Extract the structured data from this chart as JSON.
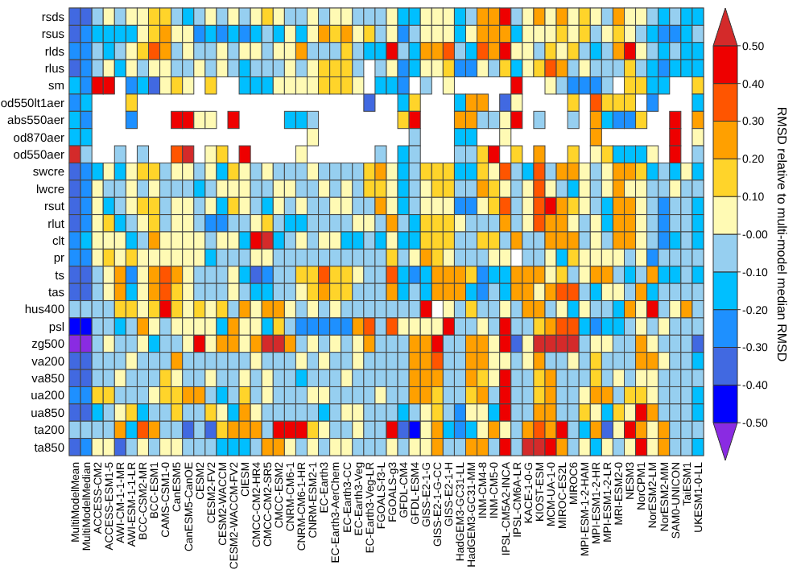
{
  "chart_data": {
    "type": "heatmap",
    "clabel": "RMSD relative to multi-model median RMSD",
    "clim": [
      -0.6,
      0.6
    ],
    "cticks": [
      {
        "value": 0.5,
        "label": "0.50"
      },
      {
        "value": 0.4,
        "label": "0.40"
      },
      {
        "value": 0.3,
        "label": "0.30"
      },
      {
        "value": 0.2,
        "label": "0.20"
      },
      {
        "value": 0.1,
        "label": "0.10"
      },
      {
        "value": 0,
        "label": "-0.00"
      },
      {
        "value": -0.1,
        "label": "-0.10"
      },
      {
        "value": -0.2,
        "label": "-0.20"
      },
      {
        "value": -0.3,
        "label": "-0.30"
      },
      {
        "value": -0.4,
        "label": "-0.40"
      },
      {
        "value": -0.5,
        "label": "-0.50"
      }
    ],
    "categories": [
      "MultiModelMean",
      "MultiModelMedian",
      "ACCESS-CM2",
      "ACCESS-ESM1-5",
      "AWI-CM-1-1-MR",
      "AWI-ESM-1-1-LR",
      "BCC-CSM2-MR",
      "BCC-ESM1",
      "CAMS-CSM1-0",
      "CanESM5",
      "CanESM5-CanOE",
      "CESM2",
      "CESM2-FV2",
      "CESM2-WACCM",
      "CESM2-WACCM-FV2",
      "CIESM",
      "CMCC-CM2-HR4",
      "CMCC-CM2-SR5",
      "CMCC-ESM2",
      "CNRM-CM6-1",
      "CNRM-CM6-1-HR",
      "CNRM-ESM2-1",
      "EC-Earth3",
      "EC-Earth3-AerChem",
      "EC-Earth3-CC",
      "EC-Earth3-Veg",
      "EC-Earth3-Veg-LR",
      "FGOALS-f3-L",
      "FGOALS-g3",
      "GFDL-CM4",
      "GFDL-ESM4",
      "GISS-E2-1-G",
      "GISS-E2-1-G-CC",
      "GISS-E2-1-H",
      "HadGEM3-GC31-LL",
      "HadGEM3-GC31-MM",
      "INM-CM4-8",
      "INM-CM5-0",
      "IPSL-CM5A2-INCA",
      "IPSL-CM6A-LR",
      "KACE-1-0-G",
      "KIOST-ESM",
      "MCM-UA-1-0",
      "MIROC-ES2L",
      "MIROC6",
      "MPI-ESM-1-2-HAM",
      "MPI-ESM1-2-HR",
      "MPI-ESM1-2-LR",
      "MRI-ESM2-0",
      "NESM3",
      "NorCPM1",
      "NorESM2-LM",
      "NorESM2-MM",
      "SAM0-UNICON",
      "TaiESM1",
      "UKESM1-0-LL"
    ],
    "y_categories": [
      "rsds",
      "rsus",
      "rlds",
      "rlus",
      "sm",
      "od550lt1aer",
      "abs550aer",
      "od870aer",
      "od550aer",
      "swcre",
      "lwcre",
      "rsut",
      "rlut",
      "clt",
      "pr",
      "ts",
      "tas",
      "hus400",
      "psl",
      "zg500",
      "va200",
      "va850",
      "ua200",
      "ua850",
      "ta200",
      "ta850"
    ],
    "cells": [
      [
        -0.35,
        -0.35,
        -0.05,
        0.05,
        -0.05,
        0.05,
        0.05,
        0.15,
        0.15,
        -0.05,
        -0.15,
        -0.05,
        0.05,
        -0.05,
        0.05,
        -0.05,
        0.05,
        0.15,
        0.05,
        -0.05,
        -0.05,
        0.05,
        -0.05,
        0.05,
        0.05,
        -0.05,
        -0.05,
        -0.05,
        0.05,
        -0.15,
        -0.15,
        0.05,
        0.05,
        0.05,
        -0.15,
        -0.05,
        0.25,
        0.25,
        0.45,
        -0.05,
        0.05,
        0.25,
        0.05,
        0.25,
        0.05,
        0.15,
        0.05,
        -0.05,
        0.25,
        0.05,
        0.05,
        -0.05,
        -0.15,
        -0.05,
        -0.15,
        -0.15
      ],
      [
        -0.35,
        -0.25,
        -0.15,
        -0.15,
        -0.15,
        -0.15,
        0.05,
        0.15,
        0.25,
        0.05,
        0.05,
        -0.25,
        -0.15,
        -0.25,
        -0.15,
        -0.25,
        -0.15,
        -0.05,
        -0.15,
        0.05,
        -0.15,
        0.05,
        0.25,
        0.15,
        0.25,
        0.05,
        0.15,
        -0.05,
        0.05,
        -0.25,
        -0.05,
        0.05,
        0.05,
        0.05,
        -0.15,
        0.05,
        0.25,
        0.25,
        0.25,
        -0.15,
        0.05,
        0.05,
        0.05,
        0.15,
        0.05,
        0.15,
        -0.05,
        0.05,
        0.15,
        0.05,
        -0.05,
        -0.15,
        -0.25,
        -0.25,
        -0.15,
        -0.05
      ],
      [
        -0.25,
        -0.25,
        -0.05,
        -0.15,
        -0.05,
        0.05,
        0.15,
        0.35,
        0.25,
        -0.05,
        0.05,
        -0.05,
        -0.05,
        0.05,
        -0.05,
        0.05,
        0.05,
        -0.05,
        0.05,
        0.05,
        0.25,
        -0.05,
        -0.05,
        -0.05,
        0.15,
        -0.05,
        -0.15,
        -0.15,
        0.45,
        -0.05,
        -0.15,
        0.25,
        0.25,
        0.35,
        -0.05,
        -0.15,
        0.35,
        0.25,
        0.45,
        0.05,
        0.05,
        -0.05,
        0.15,
        0.05,
        0.15,
        -0.05,
        -0.15,
        -0.05,
        0.25,
        0.45,
        0.05,
        -0.05,
        -0.15,
        -0.05,
        -0.15,
        -0.15
      ],
      [
        -0.35,
        -0.25,
        -0.05,
        0.05,
        -0.15,
        0.05,
        -0.05,
        0.05,
        0.05,
        -0.05,
        -0.05,
        0.05,
        -0.05,
        0.05,
        -0.05,
        -0.15,
        -0.05,
        -0.05,
        -0.05,
        0.05,
        -0.05,
        0.05,
        0.15,
        0.15,
        0.15,
        -0.05,
        null,
        -0.05,
        0.05,
        -0.25,
        -0.15,
        0.05,
        0.05,
        0.15,
        -0.25,
        -0.25,
        0.05,
        -0.05,
        0.15,
        -0.15,
        0.05,
        0.15,
        0.35,
        0.25,
        -0.05,
        0.05,
        -0.05,
        -0.05,
        -0.05,
        0.15,
        -0.05,
        -0.15,
        -0.25,
        -0.15,
        -0.15,
        -0.15
      ],
      [
        -0.15,
        -0.25,
        0.45,
        0.45,
        null,
        -0.25,
        -0.15,
        -0.35,
        0.05,
        0.15,
        0.05,
        null,
        0.15,
        null,
        null,
        -0.15,
        -0.15,
        -0.15,
        0.05,
        0.05,
        0.05,
        0.05,
        0.15,
        0.15,
        0.15,
        0.05,
        null,
        -0.15,
        -0.15,
        -0.25,
        null,
        -0.05,
        null,
        0.05,
        null,
        null,
        null,
        null,
        null,
        0.45,
        null,
        null,
        0.05,
        -0.05,
        -0.25,
        -0.25,
        -0.25,
        -0.05,
        null,
        0.15,
        0.15,
        -0.15,
        -0.15,
        null,
        null,
        0.15
      ],
      [
        -0.25,
        -0.15,
        null,
        null,
        null,
        0.15,
        null,
        null,
        null,
        null,
        null,
        null,
        null,
        null,
        null,
        null,
        null,
        null,
        null,
        null,
        null,
        null,
        null,
        null,
        null,
        null,
        -0.35,
        null,
        null,
        -0.15,
        0.15,
        null,
        null,
        null,
        -0.15,
        0.25,
        0.25,
        null,
        -0.35,
        0.05,
        null,
        null,
        null,
        null,
        0.15,
        null,
        0.35,
        0.15,
        0.15,
        0.15,
        null,
        -0.25,
        null,
        null,
        null,
        -0.15
      ],
      [
        -0.15,
        -0.25,
        null,
        null,
        null,
        -0.25,
        null,
        null,
        null,
        0.45,
        0.45,
        0.05,
        0.05,
        null,
        0.45,
        null,
        null,
        null,
        null,
        -0.15,
        -0.15,
        -0.05,
        null,
        null,
        null,
        null,
        null,
        null,
        null,
        0.15,
        0.45,
        null,
        null,
        null,
        0.25,
        0.25,
        -0.05,
        -0.05,
        0.05,
        0.45,
        null,
        -0.05,
        null,
        null,
        -0.05,
        null,
        0.25,
        -0.15,
        -0.25,
        -0.25,
        0.15,
        null,
        null,
        0.45,
        null,
        0.25
      ],
      [
        -0.15,
        -0.15,
        null,
        null,
        null,
        null,
        null,
        null,
        null,
        null,
        null,
        null,
        null,
        null,
        null,
        null,
        null,
        null,
        null,
        null,
        null,
        0.05,
        null,
        null,
        null,
        null,
        null,
        null,
        null,
        null,
        -0.05,
        null,
        null,
        null,
        -0.15,
        -0.15,
        null,
        null,
        0.05,
        null,
        null,
        null,
        null,
        null,
        null,
        null,
        0.25,
        null,
        null,
        null,
        null,
        null,
        null,
        0.45,
        null,
        0.05
      ],
      [
        0.55,
        -0.05,
        null,
        null,
        -0.05,
        null,
        -0.05,
        null,
        null,
        0.35,
        0.55,
        null,
        0.05,
        0.15,
        null,
        0.45,
        null,
        null,
        null,
        null,
        0.05,
        null,
        null,
        null,
        null,
        null,
        null,
        -0.05,
        null,
        -0.15,
        -0.05,
        null,
        null,
        null,
        -0.05,
        -0.05,
        0.15,
        0.45,
        null,
        0.15,
        null,
        0.25,
        null,
        null,
        0.15,
        null,
        0.05,
        0.15,
        -0.15,
        -0.15,
        -0.15,
        0.05,
        null,
        0.45,
        null,
        -0.05
      ],
      [
        -0.35,
        -0.25,
        -0.15,
        0.05,
        -0.15,
        0.05,
        0.15,
        0.15,
        -0.05,
        0.05,
        0.05,
        -0.05,
        0.05,
        -0.15,
        0.15,
        0.05,
        -0.05,
        0.05,
        -0.05,
        -0.05,
        -0.05,
        0.05,
        -0.05,
        -0.05,
        -0.05,
        -0.05,
        0.15,
        0.25,
        0.05,
        -0.15,
        -0.05,
        0.15,
        0.15,
        0.15,
        -0.15,
        -0.15,
        0.15,
        0.05,
        0.35,
        -0.05,
        -0.15,
        0.35,
        -0.05,
        0.25,
        0.25,
        0.05,
        -0.05,
        0.05,
        0.25,
        0.25,
        0.15,
        -0.15,
        -0.05,
        -0.15,
        0.05,
        -0.15
      ],
      [
        -0.35,
        -0.25,
        0.05,
        -0.05,
        -0.05,
        0.05,
        -0.05,
        0.05,
        -0.05,
        -0.05,
        -0.05,
        -0.15,
        -0.05,
        0.05,
        0.05,
        0.05,
        -0.05,
        -0.05,
        0.05,
        0.05,
        -0.05,
        -0.05,
        0.05,
        -0.05,
        0.05,
        -0.05,
        0.15,
        0.15,
        0.05,
        -0.15,
        -0.05,
        0.05,
        0.15,
        0.15,
        -0.05,
        -0.05,
        0.25,
        0.15,
        0.05,
        -0.05,
        0.05,
        0.35,
        0.05,
        -0.05,
        -0.15,
        0.05,
        -0.05,
        0.05,
        0.25,
        0.05,
        0.05,
        -0.05,
        -0.05,
        0.05,
        -0.05,
        -0.05
      ],
      [
        -0.35,
        -0.25,
        0.05,
        -0.15,
        -0.05,
        0.05,
        0.15,
        0.15,
        -0.05,
        0.05,
        0.05,
        -0.05,
        0.05,
        -0.15,
        0.15,
        0.05,
        -0.05,
        -0.15,
        0.05,
        -0.05,
        0.05,
        -0.05,
        -0.05,
        0.05,
        0.05,
        -0.05,
        -0.05,
        0.25,
        0.05,
        -0.15,
        -0.05,
        0.05,
        0.05,
        0.05,
        -0.25,
        -0.25,
        0.05,
        0.15,
        0.35,
        -0.05,
        0.05,
        0.35,
        0.45,
        0.25,
        0.15,
        0.05,
        -0.05,
        -0.15,
        0.25,
        0.25,
        0.05,
        -0.05,
        -0.25,
        -0.05,
        -0.05,
        -0.15
      ],
      [
        -0.35,
        -0.25,
        0.05,
        0.15,
        -0.15,
        -0.05,
        0.05,
        0.15,
        -0.05,
        0.05,
        0.05,
        -0.05,
        -0.25,
        -0.25,
        -0.05,
        -0.05,
        0.05,
        0.15,
        -0.05,
        -0.15,
        -0.15,
        -0.05,
        -0.05,
        -0.05,
        -0.05,
        0.05,
        0.05,
        -0.05,
        0.25,
        -0.05,
        -0.15,
        0.15,
        0.15,
        0.15,
        0.05,
        -0.05,
        -0.05,
        -0.05,
        0.25,
        -0.05,
        0.05,
        0.35,
        0.25,
        0.25,
        0.05,
        -0.05,
        0.05,
        -0.15,
        0.25,
        0.25,
        0.05,
        -0.05,
        -0.25,
        -0.05,
        -0.05,
        -0.15
      ],
      [
        -0.25,
        -0.15,
        0.05,
        0.05,
        0.05,
        -0.15,
        -0.05,
        0.25,
        0.05,
        0.05,
        0.05,
        0.05,
        -0.05,
        0.05,
        0.05,
        -0.15,
        0.45,
        0.55,
        -0.15,
        -0.05,
        0.05,
        -0.05,
        0.05,
        0.05,
        -0.15,
        -0.15,
        -0.05,
        -0.15,
        0.05,
        -0.15,
        -0.15,
        0.15,
        0.15,
        0.15,
        -0.05,
        -0.05,
        0.15,
        0.15,
        -0.05,
        0.25,
        -0.05,
        -0.05,
        0.25,
        0.25,
        0.25,
        -0.05,
        0.05,
        -0.05,
        0.25,
        0.25,
        0.05,
        -0.05,
        -0.25,
        -0.15,
        -0.05,
        -0.15
      ],
      [
        -0.25,
        -0.25,
        0.05,
        0.15,
        0.05,
        0.15,
        0.05,
        0.05,
        0.05,
        0.05,
        0.05,
        0.05,
        -0.15,
        -0.05,
        -0.05,
        -0.05,
        0.05,
        0.05,
        -0.05,
        -0.05,
        -0.05,
        -0.05,
        -0.05,
        -0.05,
        -0.05,
        -0.05,
        -0.05,
        -0.05,
        0.15,
        -0.05,
        0.05,
        0.25,
        0.15,
        0.05,
        -0.05,
        -0.05,
        -0.05,
        0.05,
        0.05,
        null,
        -0.05,
        -0.05,
        0.05,
        -0.15,
        0.15,
        0.05,
        0.05,
        0.05,
        0.05,
        -0.05,
        0.05,
        -0.25,
        -0.05,
        -0.05,
        -0.05,
        -0.05
      ],
      [
        -0.35,
        -0.35,
        -0.05,
        0.05,
        0.25,
        -0.25,
        0.05,
        0.25,
        0.35,
        0.25,
        0.05,
        -0.05,
        -0.05,
        -0.05,
        0.05,
        -0.15,
        -0.35,
        -0.25,
        -0.05,
        -0.05,
        0.15,
        0.15,
        0.35,
        0.15,
        0.15,
        0.05,
        -0.05,
        -0.05,
        0.35,
        -0.15,
        -0.25,
        -0.15,
        0.25,
        0.25,
        0.25,
        0.15,
        -0.25,
        -0.15,
        -0.15,
        0.25,
        0.25,
        0.25,
        0.05,
        0.15,
        -0.05,
        0.05,
        0.25,
        0.25,
        -0.05,
        -0.15,
        -0.05,
        0.25,
        -0.15,
        -0.15,
        -0.05,
        -0.15
      ],
      [
        -0.35,
        -0.35,
        -0.05,
        0.05,
        0.25,
        -0.15,
        0.05,
        0.25,
        0.35,
        0.15,
        0.05,
        -0.05,
        -0.05,
        -0.05,
        0.05,
        -0.05,
        -0.15,
        -0.15,
        -0.05,
        -0.05,
        0.05,
        0.15,
        0.25,
        0.15,
        0.15,
        -0.05,
        -0.05,
        -0.05,
        0.25,
        -0.15,
        -0.05,
        -0.15,
        0.25,
        0.25,
        0.25,
        -0.15,
        -0.25,
        -0.05,
        -0.15,
        0.25,
        0.25,
        0.05,
        0.25,
        0.35,
        0.35,
        -0.05,
        -0.15,
        0.05,
        0.05,
        -0.05,
        0.25,
        -0.15,
        -0.05,
        -0.05,
        -0.05,
        -0.05
      ],
      [
        -0.05,
        -0.05,
        -0.05,
        -0.05,
        0.15,
        0.15,
        0.05,
        0.15,
        0.45,
        0.15,
        0.05,
        0.15,
        0.05,
        0.15,
        -0.05,
        0.25,
        0.05,
        0.25,
        0.25,
        0.05,
        -0.05,
        0.05,
        -0.05,
        0.05,
        -0.05,
        -0.05,
        -0.05,
        -0.05,
        -0.05,
        -0.05,
        -0.05,
        0.45,
        null,
        0.05,
        -0.05,
        0.15,
        -0.05,
        -0.05,
        0.05,
        -0.05,
        0.25,
        0.25,
        -0.05,
        0.05,
        -0.15,
        0.05,
        -0.05,
        -0.05,
        -0.15,
        0.25,
        0.05,
        0.45,
        -0.05,
        0.05,
        0.25,
        -0.05
      ],
      [
        -0.45,
        -0.45,
        -0.05,
        -0.05,
        -0.15,
        -0.05,
        0.25,
        0.05,
        -0.05,
        0.05,
        0.05,
        0.05,
        0.05,
        -0.15,
        0.25,
        0.05,
        0.05,
        -0.15,
        0.15,
        -0.05,
        -0.25,
        -0.25,
        -0.25,
        -0.25,
        -0.25,
        0.25,
        0.35,
        -0.05,
        0.35,
        0.05,
        0.05,
        0.05,
        0.05,
        0.45,
        -0.05,
        -0.05,
        0.05,
        -0.05,
        0.45,
        -0.05,
        -0.05,
        0.15,
        0.25,
        0.35,
        0.35,
        -0.15,
        -0.25,
        -0.15,
        -0.15,
        -0.05,
        0.05,
        -0.05,
        0.05,
        -0.05,
        -0.05,
        -0.05
      ],
      [
        -0.55,
        -0.55,
        -0.05,
        0.05,
        -0.05,
        -0.05,
        0.05,
        -0.15,
        -0.05,
        -0.05,
        0.05,
        0.45,
        0.05,
        0.25,
        0.25,
        0.05,
        0.25,
        0.55,
        0.55,
        0.25,
        -0.05,
        0.05,
        -0.05,
        0.05,
        -0.05,
        0.05,
        0.25,
        -0.05,
        -0.05,
        -0.05,
        0.25,
        0.25,
        0.45,
        -0.05,
        -0.05,
        0.25,
        0.25,
        0.05,
        0.45,
        -0.35,
        0.05,
        0.55,
        0.55,
        0.55,
        0.55,
        -0.05,
        0.05,
        0.05,
        -0.05,
        -0.05,
        0.25,
        0.05,
        -0.05,
        -0.05,
        -0.05,
        -0.35
      ],
      [
        -0.35,
        -0.35,
        -0.05,
        -0.05,
        -0.05,
        0.05,
        -0.05,
        -0.05,
        -0.05,
        0.25,
        -0.05,
        -0.05,
        -0.05,
        -0.05,
        -0.05,
        -0.05,
        0.05,
        -0.05,
        -0.05,
        -0.05,
        0.05,
        -0.05,
        0.05,
        -0.05,
        -0.05,
        0.05,
        -0.05,
        -0.05,
        -0.05,
        -0.05,
        0.25,
        0.25,
        0.35,
        -0.05,
        -0.05,
        0.25,
        0.25,
        0.05,
        0.05,
        -0.05,
        0.05,
        0.25,
        -0.05,
        -0.05,
        0.05,
        -0.05,
        0.15,
        -0.05,
        -0.05,
        -0.05,
        0.25,
        0.25,
        0.05,
        -0.05,
        -0.05,
        -0.15
      ],
      [
        -0.35,
        -0.35,
        -0.05,
        -0.05,
        0.05,
        -0.05,
        -0.05,
        -0.05,
        0.15,
        0.05,
        -0.05,
        -0.05,
        0.05,
        -0.05,
        -0.05,
        0.05,
        -0.05,
        0.05,
        -0.05,
        -0.05,
        -0.15,
        -0.05,
        -0.05,
        -0.05,
        0.05,
        -0.05,
        -0.05,
        -0.05,
        -0.05,
        -0.05,
        0.25,
        0.25,
        0.25,
        -0.05,
        -0.05,
        0.25,
        0.15,
        0.05,
        0.45,
        -0.05,
        -0.05,
        0.15,
        0.25,
        -0.05,
        -0.05,
        -0.05,
        0.15,
        -0.05,
        0.05,
        -0.05,
        0.05,
        0.05,
        -0.05,
        -0.05,
        -0.05,
        -0.05
      ],
      [
        -0.25,
        -0.25,
        0.15,
        0.15,
        -0.05,
        -0.05,
        -0.05,
        0.05,
        0.15,
        0.15,
        0.25,
        0.25,
        -0.05,
        -0.15,
        -0.05,
        0.15,
        -0.05,
        0.05,
        -0.05,
        -0.05,
        -0.05,
        0.05,
        0.05,
        -0.05,
        -0.05,
        -0.05,
        -0.05,
        0.05,
        -0.05,
        -0.05,
        0.25,
        0.25,
        0.15,
        -0.05,
        -0.05,
        0.15,
        0.25,
        -0.05,
        0.45,
        -0.05,
        -0.05,
        0.15,
        0.25,
        -0.05,
        -0.05,
        0.05,
        0.25,
        0.25,
        -0.05,
        0.15,
        0.15,
        0.05,
        -0.05,
        -0.05,
        -0.05,
        -0.15
      ],
      [
        -0.35,
        -0.35,
        -0.15,
        -0.05,
        0.05,
        0.15,
        -0.15,
        -0.05,
        -0.05,
        0.15,
        -0.05,
        -0.05,
        0.15,
        0.05,
        -0.15,
        0.25,
        0.05,
        -0.05,
        -0.05,
        -0.05,
        -0.05,
        -0.05,
        -0.15,
        -0.05,
        0.05,
        0.05,
        -0.05,
        -0.05,
        -0.05,
        -0.15,
        -0.05,
        0.05,
        0.15,
        -0.05,
        -0.25,
        0.05,
        0.05,
        -0.15,
        0.45,
        -0.05,
        -0.05,
        0.25,
        0.25,
        -0.05,
        -0.05,
        0.15,
        0.05,
        -0.15,
        0.15,
        0.05,
        0.45,
        0.25,
        -0.05,
        -0.05,
        -0.05,
        -0.15
      ],
      [
        -0.05,
        -0.05,
        -0.05,
        -0.05,
        0.25,
        -0.15,
        0.35,
        0.25,
        -0.05,
        -0.05,
        -0.35,
        -0.05,
        -0.35,
        0.15,
        0.25,
        0.25,
        0.25,
        -0.05,
        0.45,
        0.45,
        0.45,
        0.15,
        0.05,
        -0.05,
        -0.05,
        0.05,
        -0.05,
        -0.05,
        0.45,
        -0.35,
        -0.45,
        0.05,
        0.25,
        -0.15,
        -0.25,
        -0.15,
        0.05,
        0.25,
        0.05,
        -0.05,
        0.25,
        0.35,
        0.25,
        0.45,
        -0.05,
        -0.15,
        0.25,
        -0.35,
        0.05,
        0.45,
        0.25,
        0.05,
        0.25,
        -0.05,
        -0.05,
        -0.05
      ],
      [
        -0.35,
        -0.25,
        0.05,
        0.05,
        -0.35,
        -0.05,
        0.05,
        -0.05,
        0.05,
        0.05,
        -0.05,
        -0.05,
        -0.05,
        -0.15,
        -0.15,
        -0.15,
        -0.05,
        0.25,
        0.25,
        0.05,
        -0.05,
        0.05,
        -0.05,
        0.05,
        0.05,
        -0.05,
        -0.05,
        -0.05,
        0.05,
        -0.05,
        0.05,
        0.05,
        0.25,
        -0.05,
        -0.05,
        0.25,
        0.25,
        -0.05,
        0.45,
        -0.05,
        0.55,
        0.55,
        0.45,
        0.25,
        -0.05,
        0.05,
        -0.15,
        0.05,
        -0.05,
        0.05,
        0.45,
        0.05,
        0.25,
        -0.05,
        -0.05,
        -0.15
      ]
    ]
  }
}
